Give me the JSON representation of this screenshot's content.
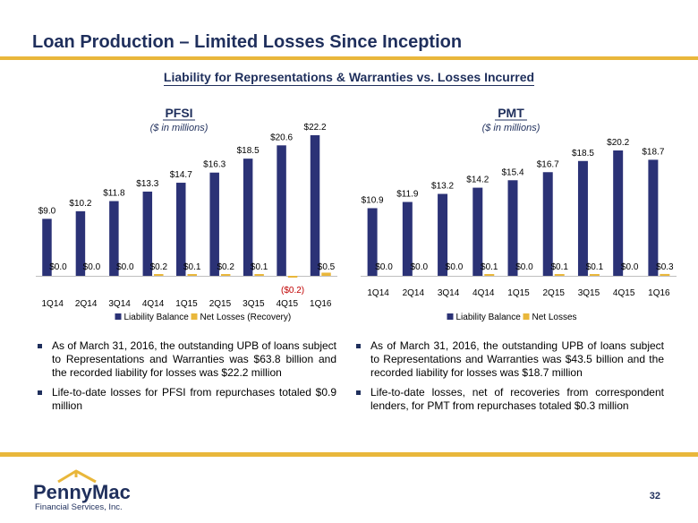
{
  "title": "Loan Production – Limited Losses Since Inception",
  "subtitle": "Liability for Representations & Warranties vs. Losses Incurred",
  "colors": {
    "navy": "#1f2f5c",
    "bar_primary": "#2b3276",
    "bar_secondary": "#e9b73b",
    "negative_label": "#c00000"
  },
  "chart_data": [
    {
      "type": "bar",
      "title": "PFSI",
      "subtitle": "($ in millions)",
      "categories": [
        "1Q14",
        "2Q14",
        "3Q14",
        "4Q14",
        "1Q15",
        "2Q15",
        "3Q15",
        "4Q15",
        "1Q16"
      ],
      "series": [
        {
          "name": "Liability Balance",
          "values": [
            9.0,
            10.2,
            11.8,
            13.3,
            14.7,
            16.3,
            18.5,
            20.6,
            22.2
          ],
          "labels": [
            "$9.0",
            "$10.2",
            "$11.8",
            "$13.3",
            "$14.7",
            "$16.3",
            "$18.5",
            "$20.6",
            "$22.2"
          ]
        },
        {
          "name": "Net Losses (Recovery)",
          "values": [
            0.0,
            0.0,
            0.0,
            0.2,
            0.1,
            0.2,
            0.1,
            -0.2,
            0.5
          ],
          "labels": [
            "$0.0",
            "$0.0",
            "$0.0",
            "$0.2",
            "$0.1",
            "$0.2",
            "$0.1",
            "($0.2)",
            "$0.5"
          ]
        }
      ],
      "ylim": [
        -1.4,
        22.2
      ]
    },
    {
      "type": "bar",
      "title": "PMT",
      "subtitle": "($ in millions)",
      "categories": [
        "1Q14",
        "2Q14",
        "3Q14",
        "4Q14",
        "1Q15",
        "2Q15",
        "3Q15",
        "4Q15",
        "1Q16"
      ],
      "series": [
        {
          "name": "Liability Balance",
          "values": [
            10.9,
            11.9,
            13.2,
            14.2,
            15.4,
            16.7,
            18.5,
            20.2,
            18.7
          ],
          "labels": [
            "$10.9",
            "$11.9",
            "$13.2",
            "$14.2",
            "$15.4",
            "$16.7",
            "$18.5",
            "$20.2",
            "$18.7"
          ]
        },
        {
          "name": "Net Losses",
          "values": [
            0.0,
            0.0,
            0.0,
            0.1,
            0.0,
            0.1,
            0.1,
            0.0,
            0.3
          ],
          "labels": [
            "$0.0",
            "$0.0",
            "$0.0",
            "$0.1",
            "$0.0",
            "$0.1",
            "$0.1",
            "$0.0",
            "$0.3"
          ]
        }
      ],
      "ylim": [
        0,
        20.2
      ]
    }
  ],
  "left_bullets": [
    "As of March 31, 2016, the outstanding UPB of loans subject to Representations and Warranties was $63.8 billion and the recorded liability for losses was $22.2 million",
    "Life-to-date losses for PFSI from repurchases totaled $0.9 million"
  ],
  "right_bullets": [
    "As of March 31, 2016, the outstanding UPB of loans subject to Representations and Warranties was $43.5 billion and the recorded liability for losses was $18.7 million",
    "Life-to-date losses, net of recoveries from correspondent lenders, for PMT from repurchases totaled $0.3 million"
  ],
  "logo": {
    "name": "PennyMac",
    "tagline": "Financial Services, Inc."
  },
  "page_number": "32"
}
